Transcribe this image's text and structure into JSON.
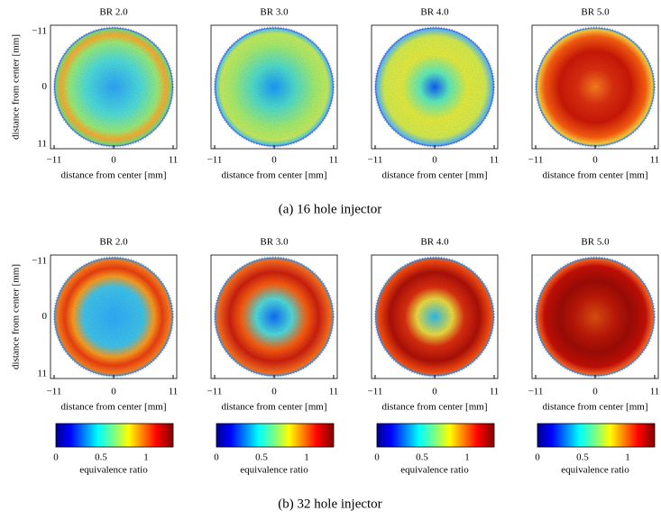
{
  "rows": [
    {
      "caption": "(a) 16 hole injector",
      "y_label": "distance from center [mm]",
      "x_label": "distance from center [mm]",
      "x_ticks": [
        "−11",
        "0",
        "11"
      ],
      "y_ticks": [
        "−11",
        "0",
        "11"
      ],
      "plots": [
        {
          "title": "BR 2.0"
        },
        {
          "title": "BR 3.0"
        },
        {
          "title": "BR 4.0"
        },
        {
          "title": "BR 5.0"
        }
      ]
    },
    {
      "caption": "(b) 32 hole injector",
      "y_label": "distance from center [mm]",
      "x_label": "distance from center [mm]",
      "x_ticks": [
        "−11",
        "0",
        "11"
      ],
      "y_ticks": [
        "−11",
        "0",
        "11"
      ],
      "plots": [
        {
          "title": "BR 2.0"
        },
        {
          "title": "BR 3.0"
        },
        {
          "title": "BR 4.0"
        },
        {
          "title": "BR 5.0"
        }
      ],
      "colorbar": {
        "label": "equivalence ratio",
        "ticks": [
          "0",
          "0.5",
          "1"
        ]
      }
    }
  ]
}
